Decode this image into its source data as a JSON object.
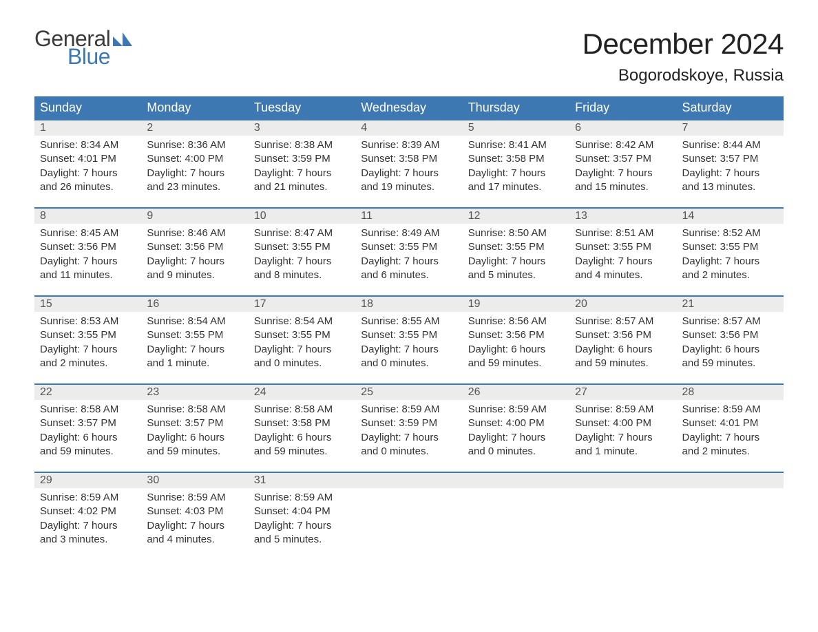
{
  "brand": {
    "part1": "General",
    "part2": "Blue"
  },
  "header": {
    "month_title": "December 2024",
    "location": "Bogorodskoye, Russia"
  },
  "colors": {
    "header_bg": "#3e78b3",
    "header_text": "#ffffff",
    "daynum_bg": "#ececec",
    "row_top_border": "#3e78b3",
    "body_text": "#333333",
    "logo_blue": "#3e78b3",
    "logo_gray": "#3b3b3b",
    "page_bg": "#ffffff"
  },
  "typography": {
    "title_fontsize_pt": 32,
    "location_fontsize_pt": 18,
    "weekday_fontsize_pt": 14,
    "daynum_fontsize_pt": 12,
    "body_fontsize_pt": 11,
    "font_family": "Arial"
  },
  "weekdays": [
    "Sunday",
    "Monday",
    "Tuesday",
    "Wednesday",
    "Thursday",
    "Friday",
    "Saturday"
  ],
  "weeks": [
    [
      {
        "day": "1",
        "sunrise": "Sunrise: 8:34 AM",
        "sunset": "Sunset: 4:01 PM",
        "dl1": "Daylight: 7 hours",
        "dl2": "and 26 minutes."
      },
      {
        "day": "2",
        "sunrise": "Sunrise: 8:36 AM",
        "sunset": "Sunset: 4:00 PM",
        "dl1": "Daylight: 7 hours",
        "dl2": "and 23 minutes."
      },
      {
        "day": "3",
        "sunrise": "Sunrise: 8:38 AM",
        "sunset": "Sunset: 3:59 PM",
        "dl1": "Daylight: 7 hours",
        "dl2": "and 21 minutes."
      },
      {
        "day": "4",
        "sunrise": "Sunrise: 8:39 AM",
        "sunset": "Sunset: 3:58 PM",
        "dl1": "Daylight: 7 hours",
        "dl2": "and 19 minutes."
      },
      {
        "day": "5",
        "sunrise": "Sunrise: 8:41 AM",
        "sunset": "Sunset: 3:58 PM",
        "dl1": "Daylight: 7 hours",
        "dl2": "and 17 minutes."
      },
      {
        "day": "6",
        "sunrise": "Sunrise: 8:42 AM",
        "sunset": "Sunset: 3:57 PM",
        "dl1": "Daylight: 7 hours",
        "dl2": "and 15 minutes."
      },
      {
        "day": "7",
        "sunrise": "Sunrise: 8:44 AM",
        "sunset": "Sunset: 3:57 PM",
        "dl1": "Daylight: 7 hours",
        "dl2": "and 13 minutes."
      }
    ],
    [
      {
        "day": "8",
        "sunrise": "Sunrise: 8:45 AM",
        "sunset": "Sunset: 3:56 PM",
        "dl1": "Daylight: 7 hours",
        "dl2": "and 11 minutes."
      },
      {
        "day": "9",
        "sunrise": "Sunrise: 8:46 AM",
        "sunset": "Sunset: 3:56 PM",
        "dl1": "Daylight: 7 hours",
        "dl2": "and 9 minutes."
      },
      {
        "day": "10",
        "sunrise": "Sunrise: 8:47 AM",
        "sunset": "Sunset: 3:55 PM",
        "dl1": "Daylight: 7 hours",
        "dl2": "and 8 minutes."
      },
      {
        "day": "11",
        "sunrise": "Sunrise: 8:49 AM",
        "sunset": "Sunset: 3:55 PM",
        "dl1": "Daylight: 7 hours",
        "dl2": "and 6 minutes."
      },
      {
        "day": "12",
        "sunrise": "Sunrise: 8:50 AM",
        "sunset": "Sunset: 3:55 PM",
        "dl1": "Daylight: 7 hours",
        "dl2": "and 5 minutes."
      },
      {
        "day": "13",
        "sunrise": "Sunrise: 8:51 AM",
        "sunset": "Sunset: 3:55 PM",
        "dl1": "Daylight: 7 hours",
        "dl2": "and 4 minutes."
      },
      {
        "day": "14",
        "sunrise": "Sunrise: 8:52 AM",
        "sunset": "Sunset: 3:55 PM",
        "dl1": "Daylight: 7 hours",
        "dl2": "and 2 minutes."
      }
    ],
    [
      {
        "day": "15",
        "sunrise": "Sunrise: 8:53 AM",
        "sunset": "Sunset: 3:55 PM",
        "dl1": "Daylight: 7 hours",
        "dl2": "and 2 minutes."
      },
      {
        "day": "16",
        "sunrise": "Sunrise: 8:54 AM",
        "sunset": "Sunset: 3:55 PM",
        "dl1": "Daylight: 7 hours",
        "dl2": "and 1 minute."
      },
      {
        "day": "17",
        "sunrise": "Sunrise: 8:54 AM",
        "sunset": "Sunset: 3:55 PM",
        "dl1": "Daylight: 7 hours",
        "dl2": "and 0 minutes."
      },
      {
        "day": "18",
        "sunrise": "Sunrise: 8:55 AM",
        "sunset": "Sunset: 3:55 PM",
        "dl1": "Daylight: 7 hours",
        "dl2": "and 0 minutes."
      },
      {
        "day": "19",
        "sunrise": "Sunrise: 8:56 AM",
        "sunset": "Sunset: 3:56 PM",
        "dl1": "Daylight: 6 hours",
        "dl2": "and 59 minutes."
      },
      {
        "day": "20",
        "sunrise": "Sunrise: 8:57 AM",
        "sunset": "Sunset: 3:56 PM",
        "dl1": "Daylight: 6 hours",
        "dl2": "and 59 minutes."
      },
      {
        "day": "21",
        "sunrise": "Sunrise: 8:57 AM",
        "sunset": "Sunset: 3:56 PM",
        "dl1": "Daylight: 6 hours",
        "dl2": "and 59 minutes."
      }
    ],
    [
      {
        "day": "22",
        "sunrise": "Sunrise: 8:58 AM",
        "sunset": "Sunset: 3:57 PM",
        "dl1": "Daylight: 6 hours",
        "dl2": "and 59 minutes."
      },
      {
        "day": "23",
        "sunrise": "Sunrise: 8:58 AM",
        "sunset": "Sunset: 3:57 PM",
        "dl1": "Daylight: 6 hours",
        "dl2": "and 59 minutes."
      },
      {
        "day": "24",
        "sunrise": "Sunrise: 8:58 AM",
        "sunset": "Sunset: 3:58 PM",
        "dl1": "Daylight: 6 hours",
        "dl2": "and 59 minutes."
      },
      {
        "day": "25",
        "sunrise": "Sunrise: 8:59 AM",
        "sunset": "Sunset: 3:59 PM",
        "dl1": "Daylight: 7 hours",
        "dl2": "and 0 minutes."
      },
      {
        "day": "26",
        "sunrise": "Sunrise: 8:59 AM",
        "sunset": "Sunset: 4:00 PM",
        "dl1": "Daylight: 7 hours",
        "dl2": "and 0 minutes."
      },
      {
        "day": "27",
        "sunrise": "Sunrise: 8:59 AM",
        "sunset": "Sunset: 4:00 PM",
        "dl1": "Daylight: 7 hours",
        "dl2": "and 1 minute."
      },
      {
        "day": "28",
        "sunrise": "Sunrise: 8:59 AM",
        "sunset": "Sunset: 4:01 PM",
        "dl1": "Daylight: 7 hours",
        "dl2": "and 2 minutes."
      }
    ],
    [
      {
        "day": "29",
        "sunrise": "Sunrise: 8:59 AM",
        "sunset": "Sunset: 4:02 PM",
        "dl1": "Daylight: 7 hours",
        "dl2": "and 3 minutes."
      },
      {
        "day": "30",
        "sunrise": "Sunrise: 8:59 AM",
        "sunset": "Sunset: 4:03 PM",
        "dl1": "Daylight: 7 hours",
        "dl2": "and 4 minutes."
      },
      {
        "day": "31",
        "sunrise": "Sunrise: 8:59 AM",
        "sunset": "Sunset: 4:04 PM",
        "dl1": "Daylight: 7 hours",
        "dl2": "and 5 minutes."
      },
      null,
      null,
      null,
      null
    ]
  ]
}
